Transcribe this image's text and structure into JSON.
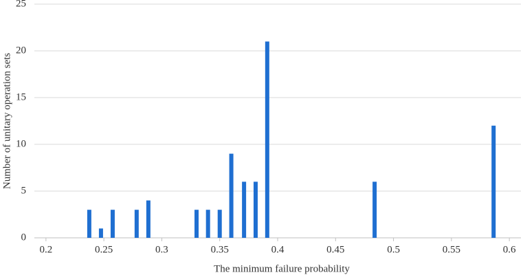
{
  "chart_data": {
    "type": "bar",
    "x_label": "The minimum failure probability",
    "y_label": "Number of unitary operation sets",
    "x": [
      0.2374,
      0.2475,
      0.2576,
      0.2783,
      0.2884,
      0.33,
      0.3399,
      0.35,
      0.36,
      0.371,
      0.381,
      0.391,
      0.4837,
      0.5864
    ],
    "values": [
      3,
      1,
      3,
      3,
      4,
      3,
      3,
      3,
      9,
      6,
      6,
      21,
      6,
      12
    ],
    "color": "#1f6fd1",
    "xlim": [
      0.19,
      0.61
    ],
    "xticks": [
      0.2,
      0.25,
      0.3,
      0.35,
      0.4,
      0.45,
      0.5,
      0.55,
      0.6
    ],
    "ylim": [
      0,
      25
    ],
    "yticks": [
      0,
      5,
      10,
      15,
      20,
      25
    ],
    "grid": true
  }
}
